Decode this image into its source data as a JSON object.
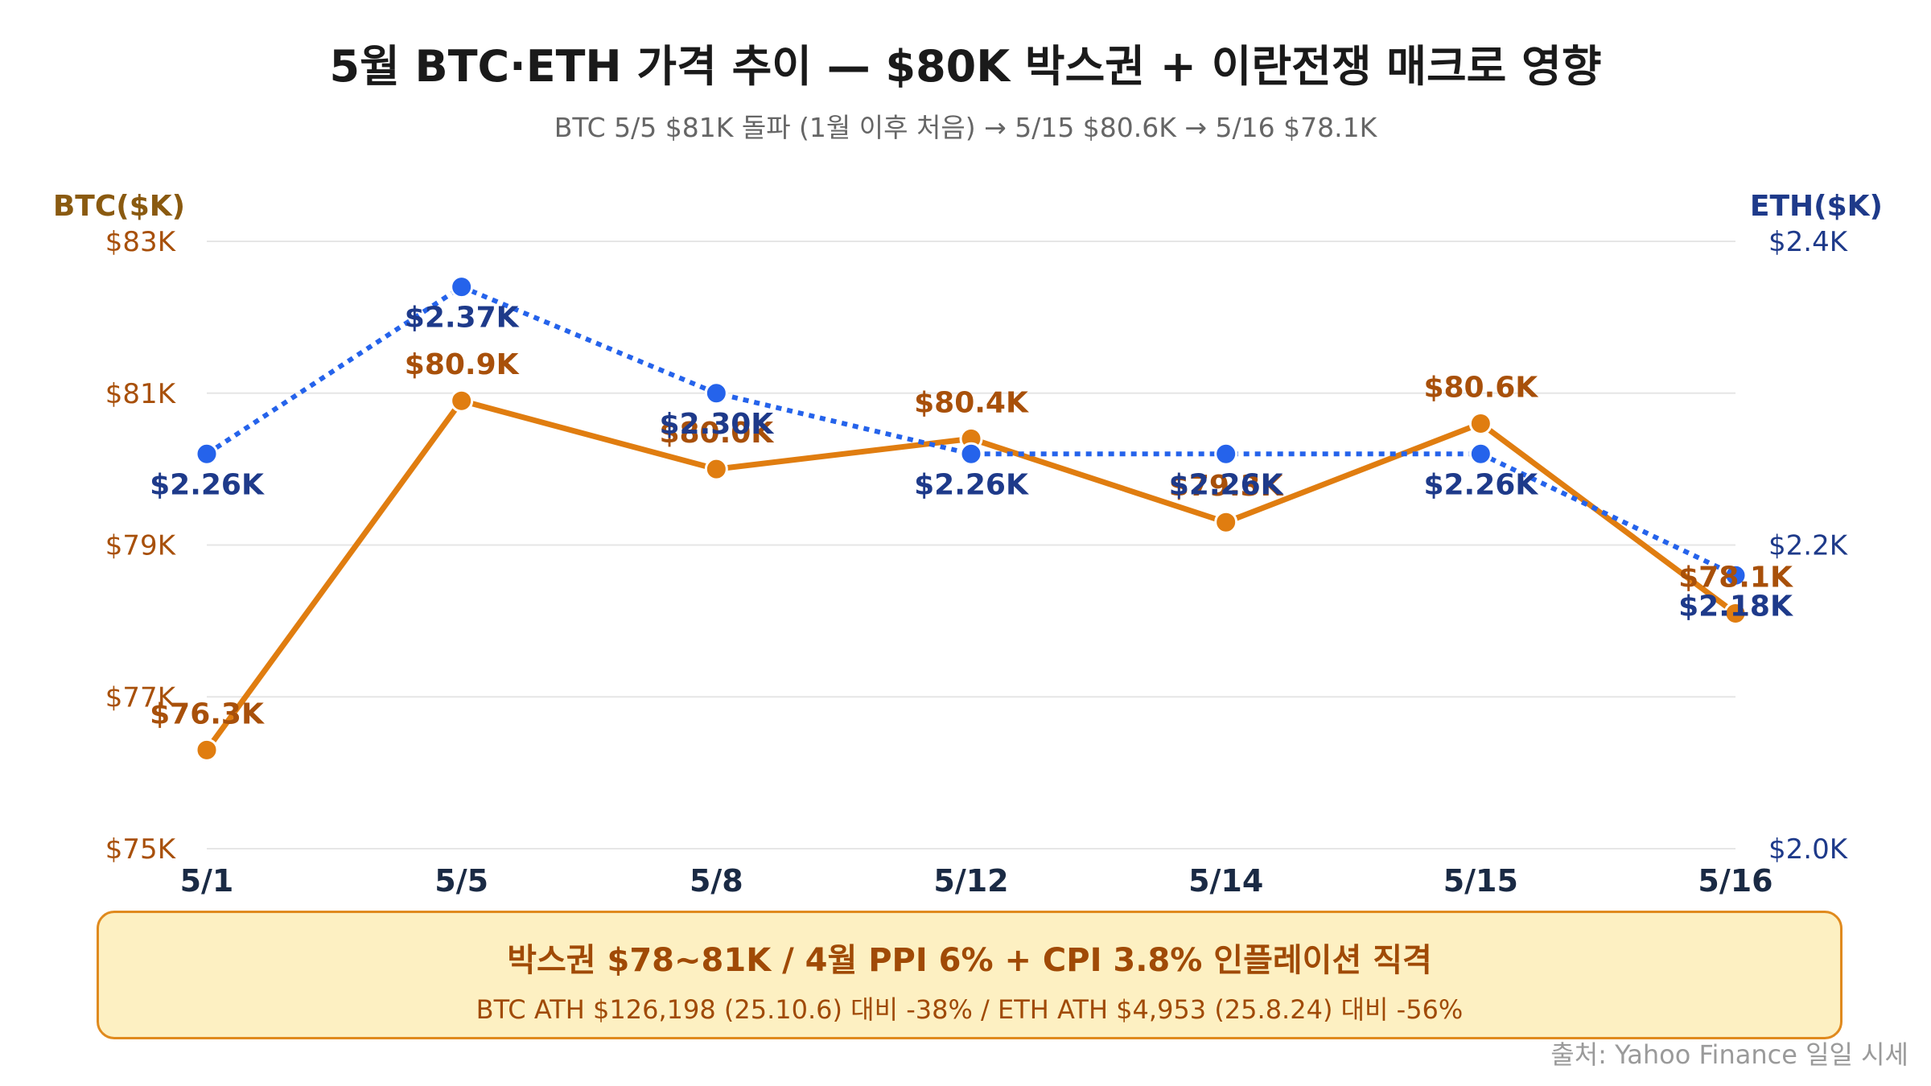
{
  "title": "5월 BTC·ETH 가격 추이 — $80K 박스권 + 이란전쟁 매크로 영향",
  "subtitle": "BTC 5/5 $81K 돌파 (1월 이후 처음) → 5/15 $80.6K → 5/16 $78.1K",
  "note": {
    "main": "박스권 $78~81K / 4월 PPI 6% + CPI 3.8% 인플레이션 직격",
    "sub": "BTC ATH $126,198 (25.10.6) 대비 -38% / ETH ATH $4,953 (25.8.24) 대비 -56%"
  },
  "source": "출처: Yahoo Finance 일일 시세",
  "chart_data": {
    "type": "line",
    "categories": [
      "5/1",
      "5/5",
      "5/8",
      "5/12",
      "5/14",
      "5/15",
      "5/16"
    ],
    "left_axis": {
      "title": "BTC($K)",
      "range": [
        75,
        83
      ],
      "ticks": [
        {
          "value": 83,
          "label": "$83K"
        },
        {
          "value": 81,
          "label": "$81K"
        },
        {
          "value": 79,
          "label": "$79K"
        },
        {
          "value": 77,
          "label": "$77K"
        },
        {
          "value": 75,
          "label": "$75K"
        }
      ]
    },
    "right_axis": {
      "title": "ETH($K)",
      "range": [
        2.0,
        2.4
      ],
      "ticks": [
        {
          "value": 2.4,
          "label": "$2.4K"
        },
        {
          "value": 2.2,
          "label": "$2.2K"
        },
        {
          "value": 2.0,
          "label": "$2.0K"
        }
      ]
    },
    "series": [
      {
        "axis": "left",
        "style": "solid",
        "color": "#e07d10",
        "label_color": "#a8500a",
        "values": [
          76.3,
          80.9,
          80.0,
          80.4,
          79.3,
          80.6,
          78.1
        ],
        "labels": [
          "$76.3K",
          "$80.9K",
          "$80.0K",
          "$80.4K",
          "$79.3K",
          "$80.6K",
          "$78.1K"
        ]
      },
      {
        "axis": "right",
        "style": "dotted",
        "color": "#2563eb",
        "label_color": "#1e3a8a",
        "values": [
          2.26,
          2.37,
          2.3,
          2.26,
          2.26,
          2.26,
          2.18
        ],
        "labels": [
          "$2.26K",
          "$2.37K",
          "$2.30K",
          "$2.26K",
          "$2.26K",
          "$2.26K",
          "$2.18K"
        ]
      }
    ],
    "grid": true,
    "left_axis_color": "#a8500a",
    "left_title_color": "#8a5a10",
    "right_axis_color": "#1e3a8a",
    "category_color": "#1a2a44"
  }
}
